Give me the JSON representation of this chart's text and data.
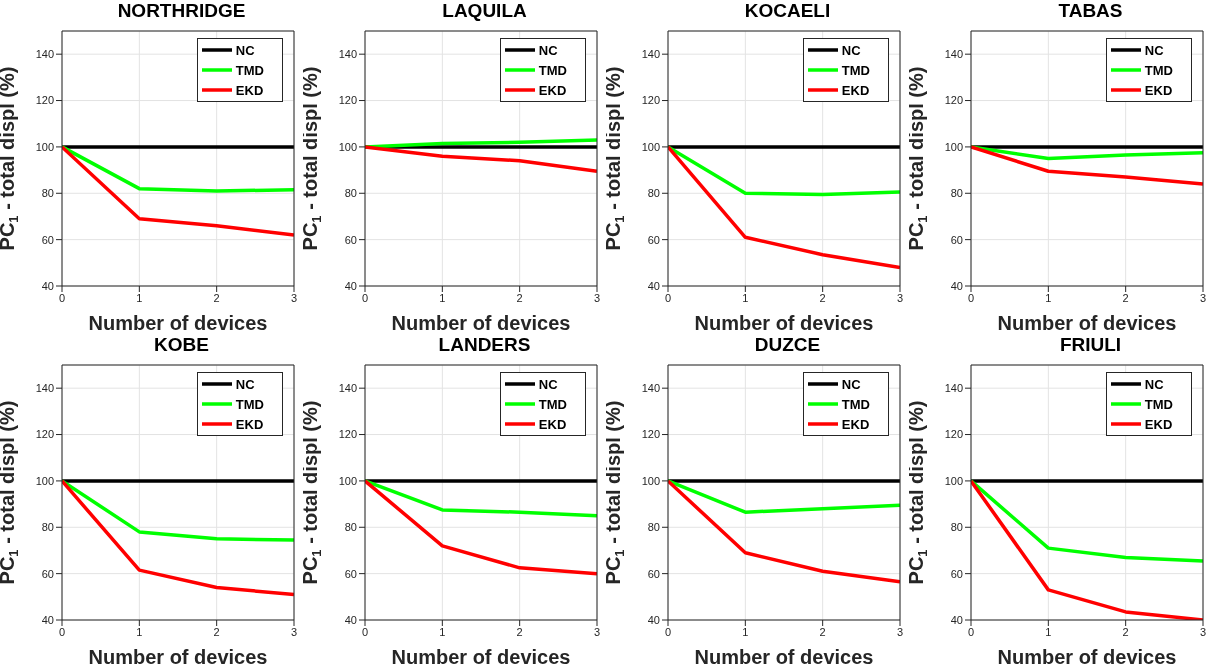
{
  "chart_data": [
    {
      "type": "line",
      "title": "NORTHRIDGE",
      "xlabel": "Number of devices",
      "ylabel": "PC$_{1}$ - total displ (%)",
      "x": [
        0,
        1,
        2,
        3
      ],
      "xlim": [
        0,
        3
      ],
      "xticks": [
        0,
        1,
        2,
        3
      ],
      "ylim": [
        40,
        150
      ],
      "yticks": [
        40,
        60,
        80,
        100,
        120,
        140
      ],
      "grid": true,
      "legend": "top right",
      "series": [
        {
          "name": "NC",
          "color": "#000000",
          "values": [
            100,
            100,
            100,
            100
          ]
        },
        {
          "name": "TMD",
          "color": "#00ff00",
          "values": [
            100,
            82,
            81,
            81.5
          ]
        },
        {
          "name": "EKD",
          "color": "#ff0000",
          "values": [
            100,
            69,
            66,
            62
          ]
        }
      ]
    },
    {
      "type": "line",
      "title": "LAQUILA",
      "xlabel": "Number of devices",
      "ylabel": "PC$_{1}$ - total displ (%)",
      "x": [
        0,
        1,
        2,
        3
      ],
      "xlim": [
        0,
        3
      ],
      "xticks": [
        0,
        1,
        2,
        3
      ],
      "ylim": [
        40,
        150
      ],
      "yticks": [
        40,
        60,
        80,
        100,
        120,
        140
      ],
      "grid": true,
      "legend": "top right",
      "series": [
        {
          "name": "NC",
          "color": "#000000",
          "values": [
            100,
            100,
            100,
            100
          ]
        },
        {
          "name": "TMD",
          "color": "#00ff00",
          "values": [
            100,
            101.5,
            102,
            103
          ]
        },
        {
          "name": "EKD",
          "color": "#ff0000",
          "values": [
            100,
            96,
            94,
            89.5
          ]
        }
      ]
    },
    {
      "type": "line",
      "title": "KOCAELI",
      "xlabel": "Number of devices",
      "ylabel": "PC$_{1}$ - total displ (%)",
      "x": [
        0,
        1,
        2,
        3
      ],
      "xlim": [
        0,
        3
      ],
      "xticks": [
        0,
        1,
        2,
        3
      ],
      "ylim": [
        40,
        150
      ],
      "yticks": [
        40,
        60,
        80,
        100,
        120,
        140
      ],
      "grid": true,
      "legend": "top right",
      "series": [
        {
          "name": "NC",
          "color": "#000000",
          "values": [
            100,
            100,
            100,
            100
          ]
        },
        {
          "name": "TMD",
          "color": "#00ff00",
          "values": [
            100,
            80,
            79.5,
            80.5
          ]
        },
        {
          "name": "EKD",
          "color": "#ff0000",
          "values": [
            100,
            61,
            53.5,
            48
          ]
        }
      ]
    },
    {
      "type": "line",
      "title": "TABAS",
      "xlabel": "Number of devices",
      "ylabel": "PC$_{1}$ - total displ (%)",
      "x": [
        0,
        1,
        2,
        3
      ],
      "xlim": [
        0,
        3
      ],
      "xticks": [
        0,
        1,
        2,
        3
      ],
      "ylim": [
        40,
        150
      ],
      "yticks": [
        40,
        60,
        80,
        100,
        120,
        140
      ],
      "grid": true,
      "legend": "top right",
      "series": [
        {
          "name": "NC",
          "color": "#000000",
          "values": [
            100,
            100,
            100,
            100
          ]
        },
        {
          "name": "TMD",
          "color": "#00ff00",
          "values": [
            100,
            95,
            96.5,
            97.5
          ]
        },
        {
          "name": "EKD",
          "color": "#ff0000",
          "values": [
            100,
            89.5,
            87,
            84
          ]
        }
      ]
    },
    {
      "type": "line",
      "title": "KOBE",
      "xlabel": "Number of devices",
      "ylabel": "PC$_{1}$ - total displ (%)",
      "x": [
        0,
        1,
        2,
        3
      ],
      "xlim": [
        0,
        3
      ],
      "xticks": [
        0,
        1,
        2,
        3
      ],
      "ylim": [
        40,
        150
      ],
      "yticks": [
        40,
        60,
        80,
        100,
        120,
        140
      ],
      "grid": true,
      "legend": "top right",
      "series": [
        {
          "name": "NC",
          "color": "#000000",
          "values": [
            100,
            100,
            100,
            100
          ]
        },
        {
          "name": "TMD",
          "color": "#00ff00",
          "values": [
            100,
            78,
            75,
            74.5
          ]
        },
        {
          "name": "EKD",
          "color": "#ff0000",
          "values": [
            100,
            61.5,
            54,
            51
          ]
        }
      ]
    },
    {
      "type": "line",
      "title": "LANDERS",
      "xlabel": "Number of devices",
      "ylabel": "PC$_{1}$ - total displ (%)",
      "x": [
        0,
        1,
        2,
        3
      ],
      "xlim": [
        0,
        3
      ],
      "xticks": [
        0,
        1,
        2,
        3
      ],
      "ylim": [
        40,
        150
      ],
      "yticks": [
        40,
        60,
        80,
        100,
        120,
        140
      ],
      "grid": true,
      "legend": "top right",
      "series": [
        {
          "name": "NC",
          "color": "#000000",
          "values": [
            100,
            100,
            100,
            100
          ]
        },
        {
          "name": "TMD",
          "color": "#00ff00",
          "values": [
            100,
            87.5,
            86.5,
            85
          ]
        },
        {
          "name": "EKD",
          "color": "#ff0000",
          "values": [
            100,
            72,
            62.5,
            60
          ]
        }
      ]
    },
    {
      "type": "line",
      "title": "DUZCE",
      "xlabel": "Number of devices",
      "ylabel": "PC$_{1}$ - total displ (%)",
      "x": [
        0,
        1,
        2,
        3
      ],
      "xlim": [
        0,
        3
      ],
      "xticks": [
        0,
        1,
        2,
        3
      ],
      "ylim": [
        40,
        150
      ],
      "yticks": [
        40,
        60,
        80,
        100,
        120,
        140
      ],
      "grid": true,
      "legend": "top right",
      "series": [
        {
          "name": "NC",
          "color": "#000000",
          "values": [
            100,
            100,
            100,
            100
          ]
        },
        {
          "name": "TMD",
          "color": "#00ff00",
          "values": [
            100,
            86.5,
            88,
            89.5
          ]
        },
        {
          "name": "EKD",
          "color": "#ff0000",
          "values": [
            100,
            69,
            61,
            56.5
          ]
        }
      ]
    },
    {
      "type": "line",
      "title": "FRIULI",
      "xlabel": "Number of devices",
      "ylabel": "PC$_{1}$ - total displ (%)",
      "x": [
        0,
        1,
        2,
        3
      ],
      "xlim": [
        0,
        3
      ],
      "xticks": [
        0,
        1,
        2,
        3
      ],
      "ylim": [
        40,
        150
      ],
      "yticks": [
        40,
        60,
        80,
        100,
        120,
        140
      ],
      "grid": true,
      "legend": "top right",
      "series": [
        {
          "name": "NC",
          "color": "#000000",
          "values": [
            100,
            100,
            100,
            100
          ]
        },
        {
          "name": "TMD",
          "color": "#00ff00",
          "values": [
            100,
            71,
            67,
            65.5
          ]
        },
        {
          "name": "EKD",
          "color": "#ff0000",
          "values": [
            100,
            53,
            43.5,
            40
          ]
        }
      ]
    }
  ]
}
